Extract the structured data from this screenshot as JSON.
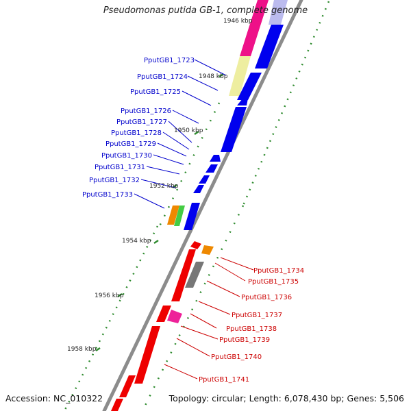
{
  "header": {
    "title": "Pseudomonas putida GB-1, complete genome"
  },
  "footer": {
    "accession": "Accession: NC_010322",
    "summary": "Topology: circular; Length: 6,078,430 bp; Genes: 5,506"
  },
  "colors": {
    "forward_label": "#0000cc",
    "reverse_label": "#cc0000",
    "backbone": "#8c8c8c",
    "tick": "#2e8b2e",
    "blue_cds": "#0000ee",
    "red_cds": "#ee0000",
    "magenta_rna": "#ee1188",
    "yellow_feature": "#eeeea0",
    "orange_feature": "#ee8800",
    "green_feature": "#44cc44",
    "gray_feature": "#777777",
    "pink_feature": "#ee2299",
    "lavender_feature": "#bbbbee"
  },
  "kbp_labels": [
    "1946 kbp",
    "1948 kbp",
    "1950 kbp",
    "1952 kbp",
    "1954 kbp",
    "1956 kbp",
    "1958 kbp"
  ],
  "forward_genes": [
    "PputGB1_1723",
    "PputGB1_1724",
    "PputGB1_1725",
    "PputGB1_1726",
    "PputGB1_1727",
    "PputGB1_1728",
    "PputGB1_1729",
    "PputGB1_1730",
    "PputGB1_1731",
    "PputGB1_1732",
    "PputGB1_1733"
  ],
  "reverse_genes": [
    "PputGB1_1734",
    "PputGB1_1735",
    "PputGB1_1736",
    "PputGB1_1737",
    "PputGB1_1738",
    "PputGB1_1739",
    "PputGB1_1740",
    "PputGB1_1741"
  ]
}
